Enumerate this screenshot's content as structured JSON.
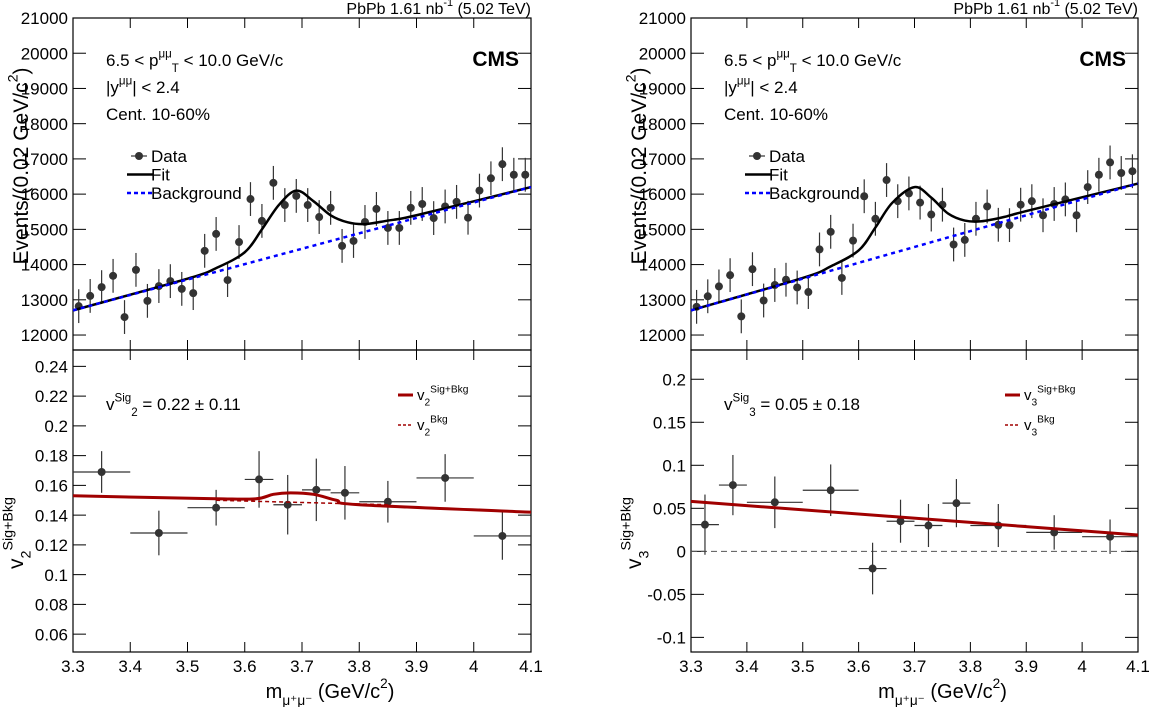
{
  "chart_data": [
    {
      "type": "scatter",
      "lumi": [
        {
          "t": "PbPb 1.61 nb"
        },
        {
          "t": "-1",
          "s": "sup"
        },
        {
          "t": " (5.02 TeV)"
        }
      ],
      "logo": "CMS",
      "annotations": [
        [
          {
            "t": "6.5 < p"
          },
          {
            "t": "μμ",
            "s": "sup"
          },
          {
            "t": "T",
            "s": "sub"
          },
          {
            "t": " < 10.0 GeV/c"
          }
        ],
        [
          {
            "t": "|y"
          },
          {
            "t": "μμ",
            "s": "sup"
          },
          {
            "t": "| < 2.4"
          }
        ],
        [
          {
            "t": "Cent. 10-60%"
          }
        ]
      ],
      "ylabel": [
        {
          "t": "Events/(0.02 GeV/c"
        },
        {
          "t": "2",
          "s": "sup"
        },
        {
          "t": ")"
        }
      ],
      "xlim": [
        3.3,
        4.1
      ],
      "ylim": [
        11575,
        21000
      ],
      "yticks": [
        12000,
        13000,
        14000,
        15000,
        16000,
        17000,
        18000,
        19000,
        20000,
        21000
      ],
      "legend": "upper left",
      "series": [
        {
          "name": "Data",
          "style": "points",
          "color": "#333333",
          "x": [
            3.31,
            3.33,
            3.35,
            3.37,
            3.39,
            3.41,
            3.43,
            3.45,
            3.47,
            3.49,
            3.51,
            3.53,
            3.55,
            3.57,
            3.59,
            3.61,
            3.63,
            3.65,
            3.67,
            3.69,
            3.71,
            3.73,
            3.75,
            3.77,
            3.79,
            3.81,
            3.83,
            3.85,
            3.87,
            3.89,
            3.91,
            3.93,
            3.95,
            3.97,
            3.99,
            4.01,
            4.03,
            4.05,
            4.07,
            4.09
          ],
          "values": [
            12820,
            13110,
            13360,
            13680,
            12510,
            13850,
            12970,
            13390,
            13530,
            13310,
            13190,
            14390,
            14870,
            13560,
            14640,
            15860,
            15240,
            16320,
            15690,
            15950,
            15690,
            15350,
            15610,
            14530,
            14670,
            15210,
            15580,
            15040,
            15040,
            15610,
            15720,
            15320,
            15650,
            15780,
            15330,
            16100,
            16450,
            16850,
            16550,
            16550
          ],
          "yerr": 480
        },
        {
          "name": "Fit",
          "style": "solid",
          "color": "#000000",
          "x": [
            3.3,
            3.5,
            3.55,
            3.6,
            3.63,
            3.66,
            3.69,
            3.72,
            3.75,
            3.78,
            3.81,
            3.85,
            3.9,
            4.1
          ],
          "values": [
            12700,
            13600,
            13900,
            14350,
            15000,
            15700,
            16100,
            15800,
            15400,
            15200,
            15150,
            15250,
            15400,
            16200
          ]
        },
        {
          "name": "Background",
          "style": "dashed",
          "color": "#0000ff",
          "x": [
            3.3,
            4.1
          ],
          "values": [
            12700,
            16200
          ]
        }
      ]
    },
    {
      "type": "scatter",
      "annotations": [
        [
          {
            "t": "v"
          },
          {
            "t": "Sig",
            "s": "sup"
          },
          {
            "t": "2",
            "s": "sub"
          },
          {
            "t": " = 0.22 ± 0.11"
          }
        ]
      ],
      "ylabel": [
        {
          "t": "v"
        },
        {
          "t": "2",
          "s": "sub"
        },
        {
          "t": "Sig+Bkg",
          "s": "sup"
        }
      ],
      "xlabel": [
        {
          "t": "m"
        },
        {
          "t": "μ⁺μ⁻",
          "s": "sub"
        },
        {
          "t": " (GeV/c"
        },
        {
          "t": "2",
          "s": "sup"
        },
        {
          "t": ")"
        }
      ],
      "xlim": [
        3.3,
        4.1
      ],
      "xticks": [
        3.3,
        3.4,
        3.5,
        3.6,
        3.7,
        3.8,
        3.9,
        4,
        4.1
      ],
      "ylim": [
        0.048,
        0.251
      ],
      "yticks": [
        0.06,
        0.08,
        0.1,
        0.12,
        0.14,
        0.16,
        0.18,
        0.2,
        0.22,
        0.24
      ],
      "legend": "upper right",
      "series": [
        {
          "style": "points",
          "color": "#333333",
          "x": [
            3.35,
            3.45,
            3.55,
            3.625,
            3.675,
            3.725,
            3.775,
            3.85,
            3.95,
            4.05
          ],
          "xerr": [
            0.05,
            0.05,
            0.05,
            0.025,
            0.025,
            0.025,
            0.025,
            0.05,
            0.05,
            0.05
          ],
          "values": [
            0.169,
            0.128,
            0.145,
            0.164,
            0.147,
            0.157,
            0.155,
            0.149,
            0.165,
            0.126
          ],
          "yerr": [
            0.014,
            0.015,
            0.012,
            0.019,
            0.02,
            0.021,
            0.018,
            0.014,
            0.016,
            0.016
          ]
        },
        {
          "name": [
            {
              "t": "v"
            },
            {
              "t": "2",
              "s": "sub"
            },
            {
              "t": "Sig+Bkg",
              "s": "sup"
            }
          ],
          "style": "solid",
          "color": "#a00000",
          "x": [
            3.3,
            3.55,
            3.62,
            3.65,
            3.68,
            3.72,
            3.76,
            3.8,
            4.1
          ],
          "values": [
            0.153,
            0.151,
            0.151,
            0.154,
            0.155,
            0.154,
            0.15,
            0.147,
            0.142
          ]
        },
        {
          "name": [
            {
              "t": "v"
            },
            {
              "t": "2",
              "s": "sub"
            },
            {
              "t": "Bkg",
              "s": "sup"
            }
          ],
          "style": "dashed",
          "color": "#a00000",
          "x": [
            3.55,
            3.85
          ],
          "values": [
            0.15,
            0.147
          ]
        }
      ]
    },
    {
      "type": "scatter",
      "lumi": [
        {
          "t": "PbPb 1.61 nb"
        },
        {
          "t": "-1",
          "s": "sup"
        },
        {
          "t": " (5.02 TeV)"
        }
      ],
      "logo": "CMS",
      "annotations": [
        [
          {
            "t": "6.5 < p"
          },
          {
            "t": "μμ",
            "s": "sup"
          },
          {
            "t": "T",
            "s": "sub"
          },
          {
            "t": " < 10.0 GeV/c"
          }
        ],
        [
          {
            "t": "|y"
          },
          {
            "t": "μμ",
            "s": "sup"
          },
          {
            "t": "| < 2.4"
          }
        ],
        [
          {
            "t": "Cent. 10-60%"
          }
        ]
      ],
      "ylabel": [
        {
          "t": "Events/(0.02 GeV/c"
        },
        {
          "t": "2",
          "s": "sup"
        },
        {
          "t": ")"
        }
      ],
      "xlim": [
        3.3,
        4.1
      ],
      "ylim": [
        11575,
        21000
      ],
      "yticks": [
        12000,
        13000,
        14000,
        15000,
        16000,
        17000,
        18000,
        19000,
        20000,
        21000
      ],
      "legend": "upper left",
      "series": [
        {
          "name": "Data",
          "style": "points",
          "color": "#333333",
          "x": [
            3.31,
            3.33,
            3.35,
            3.37,
            3.39,
            3.41,
            3.43,
            3.45,
            3.47,
            3.49,
            3.51,
            3.53,
            3.55,
            3.57,
            3.59,
            3.61,
            3.63,
            3.65,
            3.67,
            3.69,
            3.71,
            3.73,
            3.75,
            3.77,
            3.79,
            3.81,
            3.83,
            3.85,
            3.87,
            3.89,
            3.91,
            3.93,
            3.95,
            3.97,
            3.99,
            4.01,
            4.03,
            4.05,
            4.07,
            4.09
          ],
          "values": [
            12800,
            13100,
            13380,
            13700,
            12530,
            13870,
            12980,
            13420,
            13570,
            13350,
            13220,
            14430,
            14930,
            13620,
            14680,
            15940,
            15300,
            16400,
            15800,
            16020,
            15760,
            15420,
            15700,
            14570,
            14700,
            15300,
            15650,
            15130,
            15120,
            15700,
            15800,
            15400,
            15720,
            15850,
            15400,
            16200,
            16550,
            16900,
            16600,
            16650
          ],
          "yerr": 480
        },
        {
          "name": "Fit",
          "style": "solid",
          "color": "#000000",
          "x": [
            3.3,
            3.5,
            3.55,
            3.6,
            3.63,
            3.66,
            3.7,
            3.73,
            3.76,
            3.79,
            3.82,
            3.86,
            3.9,
            4.1
          ],
          "values": [
            12700,
            13620,
            13950,
            14400,
            15050,
            15750,
            16200,
            15900,
            15450,
            15250,
            15230,
            15350,
            15520,
            16300
          ]
        },
        {
          "name": "Background",
          "style": "dashed",
          "color": "#0000ff",
          "x": [
            3.3,
            4.1
          ],
          "values": [
            12700,
            16300
          ]
        }
      ]
    },
    {
      "type": "scatter",
      "annotations": [
        [
          {
            "t": "v"
          },
          {
            "t": "Sig",
            "s": "sup"
          },
          {
            "t": "3",
            "s": "sub"
          },
          {
            "t": " = 0.05 ± 0.18"
          }
        ]
      ],
      "ylabel": [
        {
          "t": "v"
        },
        {
          "t": "3",
          "s": "sub"
        },
        {
          "t": "Sig+Bkg",
          "s": "sup"
        }
      ],
      "xlabel": [
        {
          "t": "m"
        },
        {
          "t": "μ⁺μ⁻",
          "s": "sub"
        },
        {
          "t": " (GeV/c"
        },
        {
          "t": "2",
          "s": "sup"
        },
        {
          "t": ")"
        }
      ],
      "xlim": [
        3.3,
        4.1
      ],
      "xticks": [
        3.3,
        3.4,
        3.5,
        3.6,
        3.7,
        3.8,
        3.9,
        4,
        4.1
      ],
      "ylim": [
        -0.117,
        0.234
      ],
      "yticks": [
        -0.1,
        -0.05,
        0,
        0.05,
        0.1,
        0.15,
        0.2
      ],
      "hline": 0,
      "legend": "upper right",
      "series": [
        {
          "style": "points",
          "color": "#333333",
          "x": [
            3.325,
            3.375,
            3.45,
            3.55,
            3.625,
            3.675,
            3.725,
            3.775,
            3.85,
            3.95,
            4.05
          ],
          "xerr": [
            0.025,
            0.025,
            0.05,
            0.05,
            0.025,
            0.025,
            0.025,
            0.025,
            0.05,
            0.05,
            0.05
          ],
          "values": [
            0.031,
            0.077,
            0.057,
            0.071,
            -0.02,
            0.035,
            0.03,
            0.056,
            0.03,
            0.022,
            0.017
          ],
          "yerr": [
            0.035,
            0.035,
            0.03,
            0.03,
            0.03,
            0.025,
            0.025,
            0.028,
            0.025,
            0.02,
            0.02
          ]
        },
        {
          "name": [
            {
              "t": "v"
            },
            {
              "t": "3",
              "s": "sub"
            },
            {
              "t": "Sig+Bkg",
              "s": "sup"
            }
          ],
          "style": "solid",
          "color": "#a00000",
          "x": [
            3.3,
            4.1
          ],
          "values": [
            0.058,
            0.019
          ]
        },
        {
          "name": [
            {
              "t": "v"
            },
            {
              "t": "3",
              "s": "sub"
            },
            {
              "t": "Bkg",
              "s": "sup"
            }
          ],
          "style": "dashed",
          "color": "#a00000",
          "x": [
            3.3,
            4.1
          ],
          "values": [
            0.058,
            0.019
          ]
        }
      ]
    }
  ]
}
